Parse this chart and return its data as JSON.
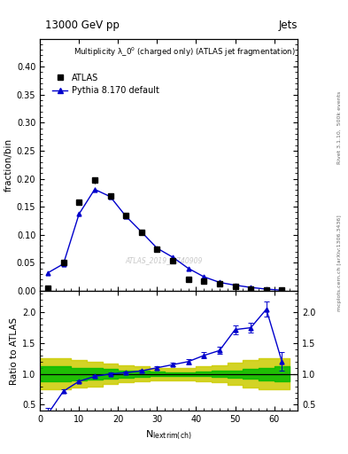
{
  "title_top": "13000 GeV pp",
  "title_right": "Jets",
  "plot_title": "Multiplicity $\\lambda\\_0^0$ (charged only) (ATLAS jet fragmentation)",
  "legend_atlas": "ATLAS",
  "legend_pythia": "Pythia 8.170 default",
  "ylabel_main": "fraction/bin",
  "ylabel_ratio": "Ratio to ATLAS",
  "xlabel": "$N_{\\mathrm{lextrim(ch)}}$",
  "watermark": "ATLAS_2019_I1740909",
  "rivet_label": "Rivet 3.1.10,  500k events",
  "arxiv_label": "mcplots.cern.ch [arXiv:1306.3436]",
  "atlas_x": [
    2,
    6,
    10,
    14,
    18,
    22,
    26,
    30,
    34,
    38,
    42,
    46,
    50,
    54,
    58,
    62
  ],
  "atlas_y": [
    0.005,
    0.05,
    0.158,
    0.197,
    0.169,
    0.135,
    0.105,
    0.075,
    0.053,
    0.02,
    0.018,
    0.012,
    0.008,
    0.003,
    0.002,
    0.001
  ],
  "atlas_yerr": [
    0.001,
    0.003,
    0.005,
    0.005,
    0.005,
    0.004,
    0.004,
    0.003,
    0.003,
    0.002,
    0.001,
    0.001,
    0.001,
    0.0005,
    0.0005,
    0.0003
  ],
  "pythia_x": [
    2,
    6,
    10,
    14,
    18,
    22,
    26,
    30,
    34,
    38,
    42,
    46,
    50,
    54,
    58,
    62
  ],
  "pythia_y": [
    0.032,
    0.048,
    0.137,
    0.181,
    0.168,
    0.133,
    0.105,
    0.076,
    0.06,
    0.04,
    0.025,
    0.015,
    0.01,
    0.006,
    0.003,
    0.001
  ],
  "pythia_yerr": [
    0.001,
    0.002,
    0.004,
    0.004,
    0.004,
    0.004,
    0.003,
    0.003,
    0.002,
    0.002,
    0.001,
    0.001,
    0.001,
    0.0005,
    0.0003,
    0.0002
  ],
  "ratio_x": [
    2,
    6,
    10,
    14,
    18,
    22,
    26,
    30,
    34,
    38,
    42,
    46,
    50,
    54,
    58,
    62
  ],
  "ratio_y": [
    0.35,
    0.72,
    0.88,
    0.96,
    1.0,
    1.02,
    1.05,
    1.1,
    1.15,
    1.2,
    1.3,
    1.38,
    1.72,
    1.75,
    2.05,
    1.2
  ],
  "ratio_yerr": [
    0.1,
    0.03,
    0.02,
    0.02,
    0.02,
    0.02,
    0.02,
    0.03,
    0.03,
    0.04,
    0.05,
    0.06,
    0.07,
    0.08,
    0.12,
    0.15
  ],
  "band_yellow_x": [
    0,
    4,
    8,
    12,
    16,
    20,
    24,
    28,
    32,
    36,
    40,
    44,
    48,
    52,
    56,
    60,
    64
  ],
  "band_yellow_lo": [
    0.75,
    0.75,
    0.78,
    0.8,
    0.83,
    0.86,
    0.88,
    0.9,
    0.9,
    0.9,
    0.88,
    0.86,
    0.82,
    0.78,
    0.75,
    0.75,
    0.75
  ],
  "band_yellow_hi": [
    1.25,
    1.25,
    1.22,
    1.2,
    1.17,
    1.14,
    1.12,
    1.1,
    1.1,
    1.1,
    1.12,
    1.14,
    1.18,
    1.22,
    1.25,
    1.25,
    1.25
  ],
  "band_green_x": [
    0,
    4,
    8,
    12,
    16,
    20,
    24,
    28,
    32,
    36,
    40,
    44,
    48,
    52,
    56,
    60,
    64
  ],
  "band_green_lo": [
    0.88,
    0.88,
    0.9,
    0.91,
    0.92,
    0.94,
    0.95,
    0.96,
    0.97,
    0.97,
    0.96,
    0.95,
    0.94,
    0.92,
    0.9,
    0.88,
    0.88
  ],
  "band_green_hi": [
    1.12,
    1.12,
    1.1,
    1.09,
    1.08,
    1.06,
    1.05,
    1.04,
    1.03,
    1.03,
    1.04,
    1.05,
    1.06,
    1.08,
    1.1,
    1.12,
    1.12
  ],
  "main_ylim": [
    0,
    0.45
  ],
  "main_yticks": [
    0,
    0.05,
    0.1,
    0.15,
    0.2,
    0.25,
    0.3,
    0.35,
    0.4
  ],
  "ratio_ylim": [
    0.4,
    2.35
  ],
  "ratio_yticks": [
    0.5,
    1.0,
    1.5,
    2.0
  ],
  "xlim": [
    0,
    66
  ],
  "xticks": [
    0,
    10,
    20,
    30,
    40,
    50,
    60
  ],
  "color_atlas": "#000000",
  "color_pythia": "#0000cc",
  "color_green": "#00bb00",
  "color_yellow": "#cccc00",
  "bg_color": "#ffffff"
}
